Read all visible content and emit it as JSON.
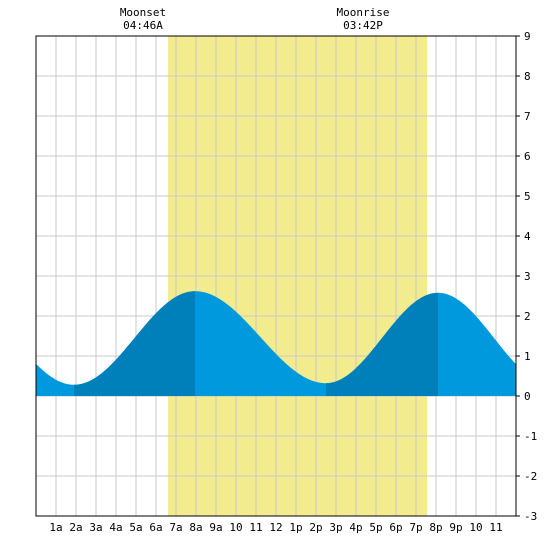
{
  "chart_data": {
    "type": "area",
    "title": "",
    "xlabel": "",
    "ylabel": "",
    "x_unit": "hour",
    "xlim": [
      0,
      24
    ],
    "ylim": [
      -3,
      9
    ],
    "grid": true,
    "y_ticks": [
      "-3",
      "-2",
      "-1",
      "0",
      "1",
      "2",
      "3",
      "4",
      "5",
      "6",
      "7",
      "8",
      "9"
    ],
    "y_tick_values": [
      -3,
      -2,
      -1,
      0,
      1,
      2,
      3,
      4,
      5,
      6,
      7,
      8,
      9
    ],
    "x_ticks": [
      "1a",
      "2a",
      "3a",
      "4a",
      "5a",
      "6a",
      "7a",
      "8a",
      "9a",
      "10",
      "11",
      "12",
      "1p",
      "2p",
      "3p",
      "4p",
      "5p",
      "6p",
      "7p",
      "8p",
      "9p",
      "10",
      "11"
    ],
    "x_tick_values": [
      1,
      2,
      3,
      4,
      5,
      6,
      7,
      8,
      9,
      10,
      11,
      12,
      13,
      14,
      15,
      16,
      17,
      18,
      19,
      20,
      21,
      22,
      23
    ],
    "tide_extremes": [
      {
        "type": "low",
        "time": 1.9,
        "height": 0.28
      },
      {
        "type": "high",
        "time": 7.95,
        "height": 2.62
      },
      {
        "type": "low",
        "time": 14.5,
        "height": 0.32
      },
      {
        "type": "high",
        "time": 20.1,
        "height": 2.58
      }
    ],
    "daylight_band": {
      "start": 6.6,
      "end": 19.55
    },
    "dark_segments": [
      {
        "start": 1.9,
        "end": 7.95
      },
      {
        "start": 14.5,
        "end": 20.1
      }
    ],
    "annotations": [
      {
        "id": "moonset",
        "label": "Moonset",
        "time_text": "04:46A",
        "x": 5.35
      },
      {
        "id": "moonrise",
        "label": "Moonrise",
        "time_text": "03:42P",
        "x": 16.35
      }
    ],
    "colors": {
      "water_light": "#0099dd",
      "water_dark": "#0080bb",
      "daylight": "#f3ec8f",
      "grid": "#c8c8c8",
      "frame": "#000000"
    }
  }
}
